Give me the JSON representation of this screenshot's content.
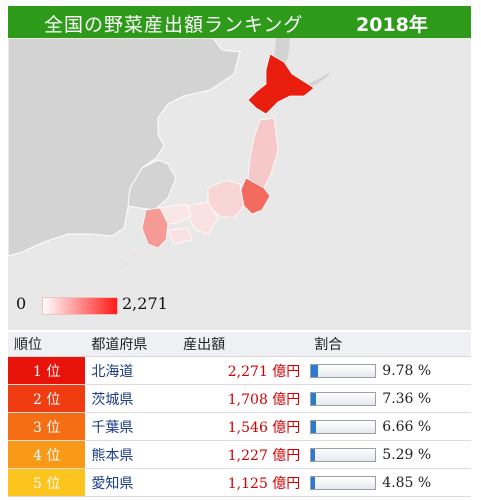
{
  "header": {
    "title": "全国の野菜産出額ランキング",
    "year": "2018年"
  },
  "legend": {
    "min": "0",
    "max": "2,271"
  },
  "table": {
    "columns": [
      "順位",
      "都道府県",
      "産出額",
      "割合"
    ],
    "rows": [
      {
        "rank": "1 位",
        "pref": "北海道",
        "value": "2,271 億円",
        "pct": "9.78 %",
        "share": 9.78,
        "color": "#e8140c"
      },
      {
        "rank": "2 位",
        "pref": "茨城県",
        "value": "1,708 億円",
        "pct": "7.36 %",
        "share": 7.36,
        "color": "#ef3c10"
      },
      {
        "rank": "3 位",
        "pref": "千葉県",
        "value": "1,546 億円",
        "pct": "6.66 %",
        "share": 6.66,
        "color": "#f56e14"
      },
      {
        "rank": "4 位",
        "pref": "熊本県",
        "value": "1,227 億円",
        "pct": "5.29 %",
        "share": 5.29,
        "color": "#f89a18"
      },
      {
        "rank": "5 位",
        "pref": "愛知県",
        "value": "1,125 億円",
        "pct": "4.85 %",
        "share": 4.85,
        "color": "#fcc41c"
      }
    ]
  },
  "chart_data": {
    "type": "table",
    "title": "全国の野菜産出額ランキング",
    "columns": [
      "順位",
      "都道府県",
      "産出額",
      "割合"
    ],
    "rows": [
      [
        "1 位",
        "北海道",
        2271,
        9.78
      ],
      [
        "2 位",
        "茨城県",
        1708,
        7.36
      ],
      [
        "3 位",
        "千葉県",
        1546,
        6.66
      ],
      [
        "4 位",
        "熊本県",
        1227,
        5.29
      ],
      [
        "5 位",
        "愛知県",
        1125,
        4.85
      ]
    ],
    "legend_range": [
      0,
      2271
    ]
  }
}
